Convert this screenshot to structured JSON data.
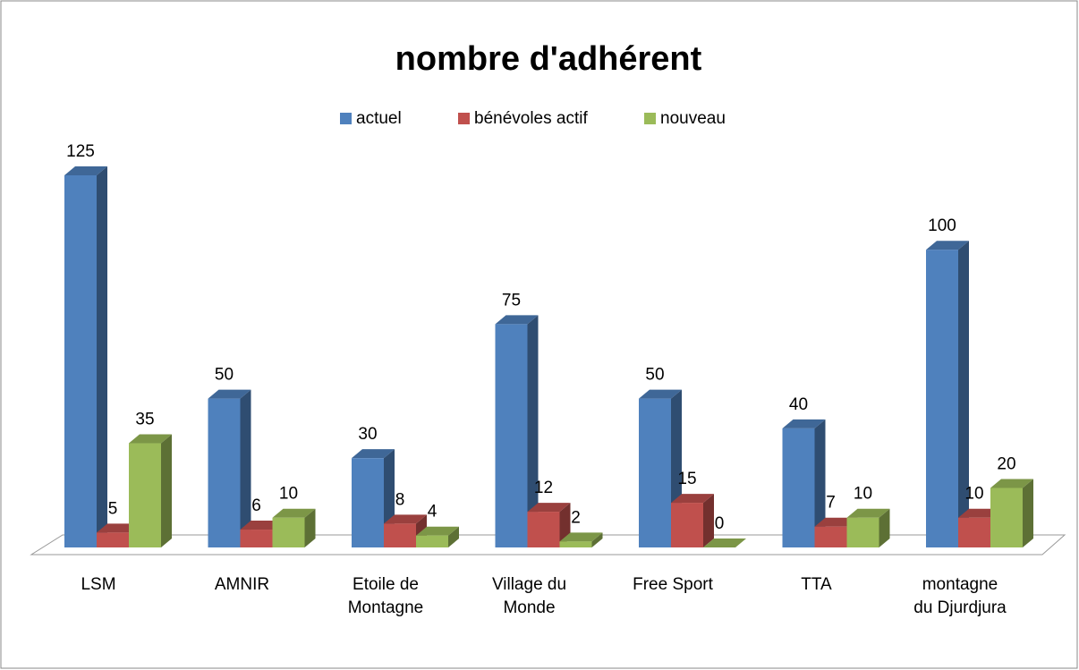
{
  "chart_data": {
    "type": "bar3d",
    "title": "nombre d'adhérent",
    "categories": [
      "LSM",
      "AMNIR",
      "Etoile de Montagne",
      "Village du Monde",
      "Free Sport",
      "TTA",
      "montagne du Djurdjura"
    ],
    "series": [
      {
        "name": "actuel",
        "color": "#4f81bd",
        "values": [
          125,
          50,
          30,
          75,
          50,
          40,
          100
        ]
      },
      {
        "name": "bénévoles actif",
        "color": "#c0504d",
        "values": [
          5,
          6,
          8,
          12,
          15,
          7,
          10
        ]
      },
      {
        "name": "nouveau",
        "color": "#9bbb59",
        "values": [
          35,
          10,
          4,
          2,
          0,
          10,
          20
        ]
      }
    ],
    "legend": "top"
  }
}
